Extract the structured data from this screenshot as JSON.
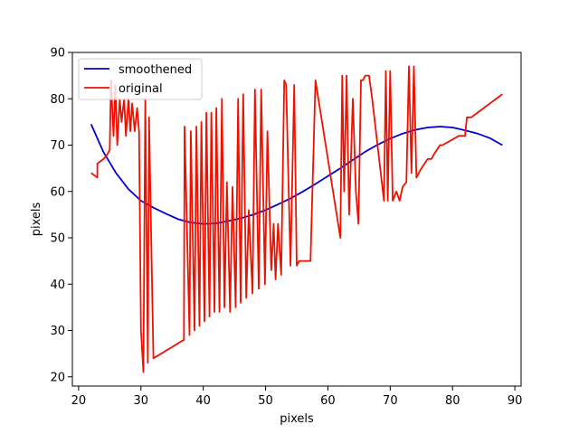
{
  "chart_data": {
    "type": "line",
    "title": "",
    "xlabel": "pixels",
    "ylabel": "pixels",
    "xlim": [
      19,
      91
    ],
    "ylim": [
      18,
      90
    ],
    "xticks": [
      20,
      30,
      40,
      50,
      60,
      70,
      80,
      90
    ],
    "yticks": [
      20,
      30,
      40,
      50,
      60,
      70,
      80,
      90
    ],
    "grid": false,
    "legend": "top-left",
    "series": [
      {
        "name": "smoothened",
        "color": "#0000cc",
        "x": [
          22,
          24,
          26,
          28,
          30,
          32,
          34,
          36,
          38,
          40,
          42,
          44,
          46,
          48,
          50,
          52,
          54,
          56,
          58,
          60,
          62,
          64,
          66,
          68,
          70,
          72,
          74,
          76,
          78,
          80,
          82,
          84,
          86,
          88
        ],
        "y": [
          74.5,
          68.5,
          64.0,
          60.5,
          58.0,
          56.5,
          55.2,
          54.0,
          53.3,
          53.0,
          53.1,
          53.6,
          54.2,
          55.0,
          56.0,
          57.2,
          58.5,
          60.0,
          61.6,
          63.3,
          65.0,
          66.8,
          68.6,
          70.1,
          71.4,
          72.5,
          73.3,
          73.8,
          74.0,
          73.8,
          73.2,
          72.5,
          71.5,
          70.0
        ]
      },
      {
        "name": "original",
        "color": "#ee1100",
        "x": [
          22,
          23,
          23,
          24,
          24.6,
          25,
          25.2,
          25.6,
          25.9,
          26.2,
          26.6,
          26.9,
          27.3,
          27.6,
          28,
          28.3,
          28.6,
          29,
          29.4,
          29.7,
          30,
          30.4,
          30.7,
          31.1,
          31.3,
          32,
          36.9,
          37,
          37.8,
          38,
          38.6,
          38.9,
          39.4,
          39.7,
          40.2,
          40.5,
          41,
          41.3,
          41.8,
          42.1,
          42.6,
          43,
          43.4,
          43.8,
          44.3,
          44.7,
          45.2,
          45.6,
          46,
          46.4,
          46.9,
          47.3,
          47.9,
          48.3,
          48.9,
          49.3,
          49.9,
          50.3,
          50.9,
          51.3,
          51.6,
          52,
          52.5,
          53,
          53.3,
          54,
          54.6,
          55,
          55.4,
          56.8,
          57.2,
          58,
          62,
          62.3,
          62.6,
          63,
          63.4,
          64,
          64.5,
          64.9,
          65.3,
          65.6,
          66,
          66.6,
          67.1,
          69,
          69.3,
          69.6,
          70,
          70.4,
          71,
          71.5,
          72,
          72.6,
          73,
          73.4,
          73.8,
          74.2,
          74.6,
          75,
          76,
          76.6,
          77,
          78,
          78.4,
          81,
          82,
          82.3,
          83,
          88
        ],
        "y": [
          64,
          63,
          66,
          67,
          68,
          69,
          84,
          72,
          83,
          70,
          80,
          75,
          80,
          72,
          80,
          73,
          79,
          73,
          78,
          73,
          30,
          21,
          80,
          23,
          76,
          24,
          28,
          74,
          29,
          73,
          30,
          74,
          31,
          75,
          32,
          77,
          33,
          77,
          34,
          78,
          34,
          80,
          35,
          62,
          34,
          61,
          35,
          80,
          36,
          81,
          37,
          56,
          38,
          82,
          39,
          82,
          40,
          73,
          43,
          53,
          41,
          53,
          42,
          84,
          83,
          44,
          83,
          44,
          45,
          45,
          45,
          84,
          50,
          85,
          60,
          85,
          55,
          80,
          60,
          53,
          84,
          84,
          85,
          85,
          80,
          58,
          86,
          58,
          86,
          58,
          60,
          58,
          61,
          62,
          87,
          64,
          87,
          63,
          64,
          65,
          67,
          67,
          68,
          70,
          70,
          72,
          72,
          76,
          76,
          81
        ]
      }
    ]
  }
}
